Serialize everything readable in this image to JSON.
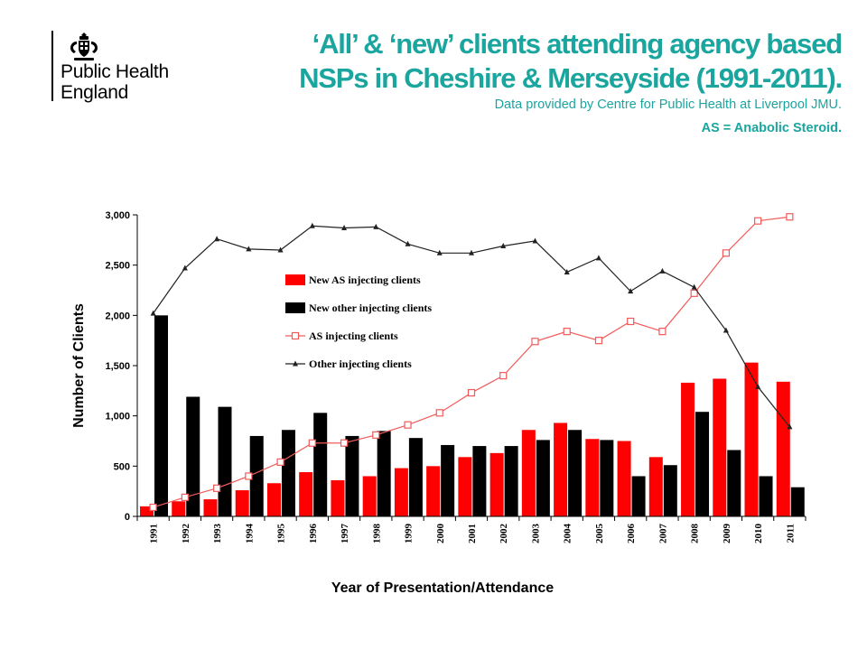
{
  "header": {
    "logo_line1": "Public Health",
    "logo_line2": "England",
    "title_line1": "‘All’ & ‘new’ clients attending agency based",
    "title_line2": "NSPs in Cheshire & Merseyside (1991-2011).",
    "subtitle": "Data provided by Centre for Public Health at Liverpool JMU.",
    "abbreviation": "AS = Anabolic Steroid."
  },
  "colors": {
    "title": "#1aa59f",
    "new_as_bars": "#ff0000",
    "new_other_bars": "#000000",
    "as_line": "#f25a5a",
    "other_line": "#222222"
  },
  "chart_data": {
    "type": "bar",
    "xlabel": "Year of Presentation/Attendance",
    "ylabel": "Number of Clients",
    "ylim": [
      0,
      3000
    ],
    "yticks": [
      0,
      500,
      1000,
      1500,
      2000,
      2500,
      3000
    ],
    "ytick_labels": [
      "0",
      "500",
      "1,000",
      "1,500",
      "2,000",
      "2,500",
      "3,000"
    ],
    "legend_position": "upper-left-inside",
    "grid": false,
    "categories": [
      "1991",
      "1992",
      "1993",
      "1994",
      "1995",
      "1996",
      "1997",
      "1998",
      "1999",
      "2000",
      "2001",
      "2002",
      "2003",
      "2004",
      "2005",
      "2006",
      "2007",
      "2008",
      "2009",
      "2010",
      "2011"
    ],
    "series": [
      {
        "name": "New AS injecting clients",
        "type": "bar",
        "color": "#ff0000",
        "values": [
          100,
          150,
          170,
          260,
          330,
          440,
          360,
          400,
          480,
          500,
          590,
          630,
          860,
          930,
          770,
          750,
          590,
          1330,
          1370,
          1530,
          1340
        ]
      },
      {
        "name": "New other injecting clients",
        "type": "bar",
        "color": "#000000",
        "values": [
          2000,
          1190,
          1090,
          800,
          860,
          1030,
          800,
          850,
          780,
          710,
          700,
          700,
          760,
          860,
          760,
          400,
          510,
          1040,
          660,
          400,
          290
        ]
      },
      {
        "name": "AS injecting clients",
        "type": "line",
        "marker": "open-square",
        "color": "#f25a5a",
        "values": [
          90,
          190,
          280,
          400,
          540,
          730,
          730,
          810,
          910,
          1030,
          1230,
          1400,
          1740,
          1840,
          1750,
          1940,
          1840,
          2220,
          2620,
          2940,
          2980
        ]
      },
      {
        "name": "Other injecting clients",
        "type": "line",
        "marker": "triangle",
        "color": "#222222",
        "values": [
          2020,
          2470,
          2760,
          2660,
          2650,
          2890,
          2870,
          2880,
          2710,
          2620,
          2620,
          2690,
          2740,
          2430,
          2570,
          2240,
          2440,
          2280,
          1850,
          1290,
          890
        ]
      }
    ]
  }
}
